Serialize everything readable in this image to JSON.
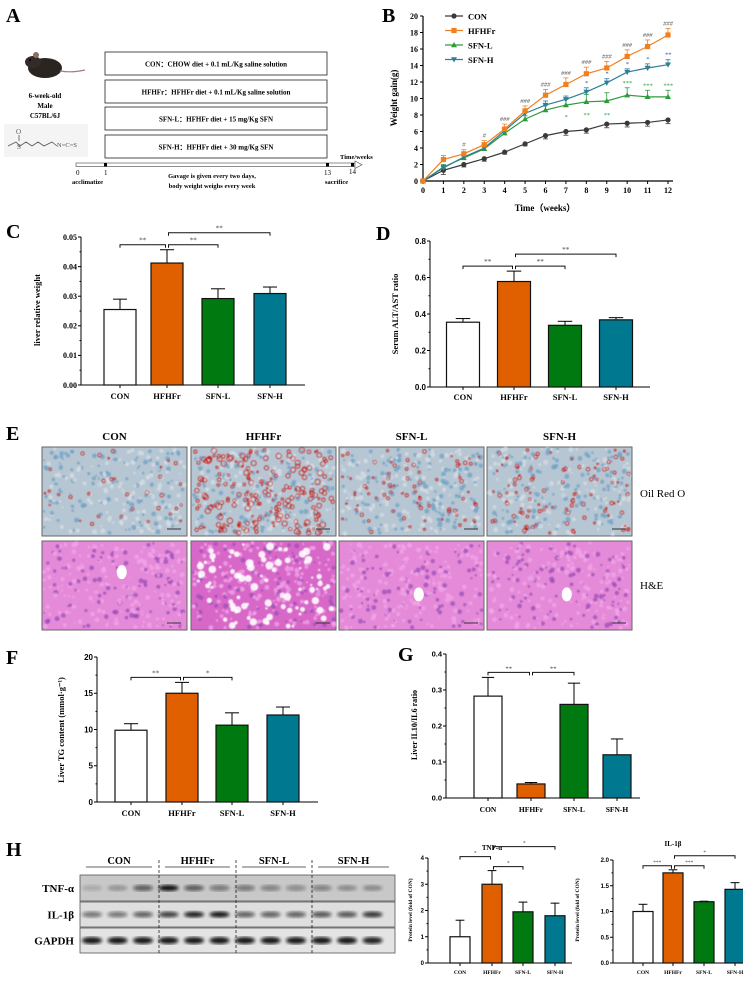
{
  "panels": {
    "A": {
      "label": "A",
      "mouse": {
        "line1": "6-week-old",
        "line2": "Male",
        "line3": "C57BL/6J"
      },
      "molecule": {
        "o": "O",
        "s": "S",
        "ncs": "N=C=S"
      },
      "groups": [
        "CON：CHOW diet + 0.1 mL/Kg saline solution",
        "HFHFr：HFHFr diet + 0.1 mL/Kg saline solution",
        "SFN-L：HFHFr diet + 15 mg/Kg SFN",
        "SFN-H：HFHFr diet + 30 mg/Kg SFN"
      ],
      "timeline": {
        "axis_label": "Time/weeks",
        "ticks": [
          "0",
          "1",
          "13",
          "14"
        ],
        "acclimatize": "acclimatize",
        "sacrifice": "sacrifice",
        "note_line1": "Gavage is given every two days,",
        "note_line2": "body weight weighs every week"
      }
    },
    "B": {
      "label": "B"
    },
    "C": {
      "label": "C"
    },
    "D": {
      "label": "D"
    },
    "E": {
      "label": "E",
      "columns": [
        "CON",
        "HFHFr",
        "SFN-L",
        "SFN-H"
      ],
      "rows": [
        "Oil Red O",
        "H&E"
      ]
    },
    "F": {
      "label": "F"
    },
    "G": {
      "label": "G"
    },
    "H": {
      "label": "H",
      "blot_groups": [
        "CON",
        "HFHFr",
        "SFN-L",
        "SFN-H"
      ],
      "blot_rows": [
        "TNF-α",
        "IL-1β",
        "GAPDH"
      ]
    }
  },
  "colors": {
    "CON": "#ffffff",
    "HFHFr": "#e06000",
    "SFN-L": "#007a10",
    "SFN-H": "#00788f",
    "line_CON": "#3a3a3a",
    "line_HFHFr": "#f07f1e",
    "line_SFN-L": "#2e9b3a",
    "line_SFN-H": "#2f7f99",
    "sig_SFN-L": "#2ea83a",
    "sig_SFN-H": "#2a5fa8"
  },
  "chart_data": [
    {
      "id": "B",
      "type": "line",
      "xlabel": "Time（weeks）",
      "ylabel": "Weight gain(g)",
      "x": [
        0,
        1,
        2,
        3,
        4,
        5,
        6,
        7,
        8,
        9,
        10,
        11,
        12
      ],
      "xlim": [
        0,
        12
      ],
      "ylim": [
        0,
        20
      ],
      "yticks": [
        "0",
        "2",
        "4",
        "6",
        "8",
        "10",
        "12",
        "14",
        "16",
        "18",
        "20"
      ],
      "xticks": [
        "0",
        "1",
        "2",
        "3",
        "4",
        "5",
        "6",
        "7",
        "8",
        "9",
        "10",
        "11",
        "12"
      ],
      "legend": "top-left",
      "series": [
        {
          "name": "CON",
          "marker": "circle",
          "values": [
            0,
            1.3,
            2.0,
            2.7,
            3.5,
            4.5,
            5.5,
            6.0,
            6.2,
            6.9,
            7.0,
            7.1,
            7.4
          ],
          "errors": [
            0,
            0.5,
            0.3,
            0.3,
            0.25,
            0.25,
            0.4,
            0.45,
            0.4,
            0.45,
            0.45,
            0.45,
            0.45
          ]
        },
        {
          "name": "HFHFr",
          "marker": "square",
          "values": [
            0,
            2.6,
            3.3,
            4.4,
            6.3,
            8.5,
            10.4,
            11.7,
            13.0,
            13.7,
            15.1,
            16.3,
            17.7
          ],
          "errors": [
            0,
            0.5,
            0.5,
            0.5,
            0.6,
            0.6,
            0.7,
            0.8,
            0.8,
            0.8,
            0.8,
            0.8,
            0.8
          ]
        },
        {
          "name": "SFN-L",
          "marker": "triangle-up",
          "values": [
            0,
            1.7,
            2.8,
            3.9,
            5.8,
            7.5,
            8.6,
            9.2,
            9.6,
            9.7,
            10.4,
            10.2,
            10.2
          ],
          "errors": [
            0,
            0.3,
            0.3,
            0.3,
            0.3,
            0.4,
            0.6,
            0.7,
            0.9,
            1.0,
            0.9,
            0.8,
            0.8
          ]
        },
        {
          "name": "SFN-H",
          "marker": "triangle-down",
          "values": [
            0,
            1.6,
            2.9,
            4.0,
            6.1,
            8.2,
            9.2,
            9.9,
            10.8,
            11.9,
            13.2,
            13.7,
            14.1
          ],
          "errors": [
            0,
            0.3,
            0.3,
            0.3,
            0.3,
            0.4,
            0.5,
            0.4,
            0.5,
            0.5,
            0.4,
            0.5,
            0.6
          ]
        }
      ],
      "annotations": [
        {
          "series": "HFHFr",
          "marks": [
            "",
            "",
            "#",
            "#",
            "###",
            "###",
            "###",
            "###",
            "###",
            "###",
            "###",
            "###",
            "###"
          ]
        },
        {
          "series": "SFN-H",
          "marks": [
            "",
            "",
            "",
            "",
            "",
            "",
            "",
            "",
            "*",
            "*",
            "*",
            "*",
            "**"
          ]
        },
        {
          "series": "SFN-L",
          "marks": [
            "",
            "",
            "",
            "",
            "",
            "",
            "",
            "*",
            "**",
            "**",
            "***",
            "***",
            "***"
          ]
        }
      ]
    },
    {
      "id": "C",
      "type": "bar",
      "ylabel": "liver relative weight",
      "categories": [
        "CON",
        "HFHFr",
        "SFN-L",
        "SFN-H"
      ],
      "values": [
        0.0255,
        0.0412,
        0.0292,
        0.0309
      ],
      "errors": [
        0.0035,
        0.0045,
        0.0033,
        0.0022
      ],
      "ylim": [
        0,
        0.05
      ],
      "yticks": [
        "0.00",
        "0.01",
        "0.02",
        "0.03",
        "0.04",
        "0.05"
      ],
      "significance": [
        {
          "from": "CON",
          "to": "HFHFr",
          "label": "**"
        },
        {
          "from": "HFHFr",
          "to": "SFN-L",
          "label": "**"
        },
        {
          "from": "HFHFr",
          "to": "SFN-H",
          "label": "**"
        }
      ]
    },
    {
      "id": "D",
      "type": "bar",
      "ylabel": "Serum ALT/AST ratio",
      "categories": [
        "CON",
        "HFHFr",
        "SFN-L",
        "SFN-H"
      ],
      "values": [
        0.355,
        0.578,
        0.338,
        0.368
      ],
      "errors": [
        0.02,
        0.057,
        0.022,
        0.012
      ],
      "ylim": [
        0,
        0.8
      ],
      "yticks": [
        "0.0",
        "0.2",
        "0.4",
        "0.6",
        "0.8"
      ],
      "significance": [
        {
          "from": "CON",
          "to": "HFHFr",
          "label": "**"
        },
        {
          "from": "HFHFr",
          "to": "SFN-L",
          "label": "**"
        },
        {
          "from": "HFHFr",
          "to": "SFN-H",
          "label": "**"
        }
      ]
    },
    {
      "id": "F",
      "type": "bar",
      "ylabel": "Liver TG content (mmol·g⁻¹)",
      "categories": [
        "CON",
        "HFHFr",
        "SFN-L",
        "SFN-H"
      ],
      "values": [
        9.9,
        15.0,
        10.6,
        12.0
      ],
      "errors": [
        0.9,
        1.5,
        1.7,
        1.1
      ],
      "ylim": [
        0,
        20
      ],
      "yticks": [
        "0",
        "5",
        "10",
        "15",
        "20"
      ],
      "significance": [
        {
          "from": "CON",
          "to": "HFHFr",
          "label": "**"
        },
        {
          "from": "HFHFr",
          "to": "SFN-L",
          "label": "*"
        }
      ]
    },
    {
      "id": "G",
      "type": "bar",
      "ylabel": "Liver  IL10/IL6 ratio",
      "categories": [
        "CON",
        "HFHFr",
        "SFN-L",
        "SFN-H"
      ],
      "values": [
        0.283,
        0.039,
        0.26,
        0.12
      ],
      "errors": [
        0.052,
        0.004,
        0.059,
        0.044
      ],
      "ylim": [
        0,
        0.4
      ],
      "yticks": [
        "0.0",
        "0.1",
        "0.2",
        "0.3",
        "0.4"
      ],
      "significance": [
        {
          "from": "CON",
          "to": "HFHFr",
          "label": "**"
        },
        {
          "from": "HFHFr",
          "to": "SFN-L",
          "label": "**"
        }
      ]
    },
    {
      "id": "H-TNF",
      "type": "bar",
      "title": "TNF-α",
      "ylabel": "Protein level (fold of CON)",
      "categories": [
        "CON",
        "HFHFr",
        "SFN-L",
        "SFN-H"
      ],
      "values": [
        1.0,
        3.0,
        1.95,
        1.8
      ],
      "errors": [
        0.63,
        0.52,
        0.37,
        0.48
      ],
      "ylim": [
        0,
        4
      ],
      "yticks": [
        "0",
        "1",
        "2",
        "3",
        "4"
      ],
      "significance": [
        {
          "from": "CON",
          "to": "HFHFr",
          "label": "*"
        },
        {
          "from": "HFHFr",
          "to": "SFN-L",
          "label": "*"
        },
        {
          "from": "HFHFr",
          "to": "SFN-H",
          "label": "*"
        }
      ]
    },
    {
      "id": "H-IL1B",
      "type": "bar",
      "title": "IL-1β",
      "ylabel": "Protein level (fold of CON)",
      "categories": [
        "CON",
        "HFHFr",
        "SFN-L",
        "SFN-H"
      ],
      "values": [
        1.0,
        1.75,
        1.19,
        1.43
      ],
      "errors": [
        0.14,
        0.06,
        0.01,
        0.13
      ],
      "ylim": [
        0,
        2.0
      ],
      "yticks": [
        "0.0",
        "0.5",
        "1.0",
        "1.5",
        "2.0"
      ],
      "significance": [
        {
          "from": "CON",
          "to": "HFHFr",
          "label": "***"
        },
        {
          "from": "HFHFr",
          "to": "SFN-L",
          "label": "***"
        },
        {
          "from": "HFHFr",
          "to": "SFN-H",
          "label": "*"
        }
      ]
    }
  ]
}
